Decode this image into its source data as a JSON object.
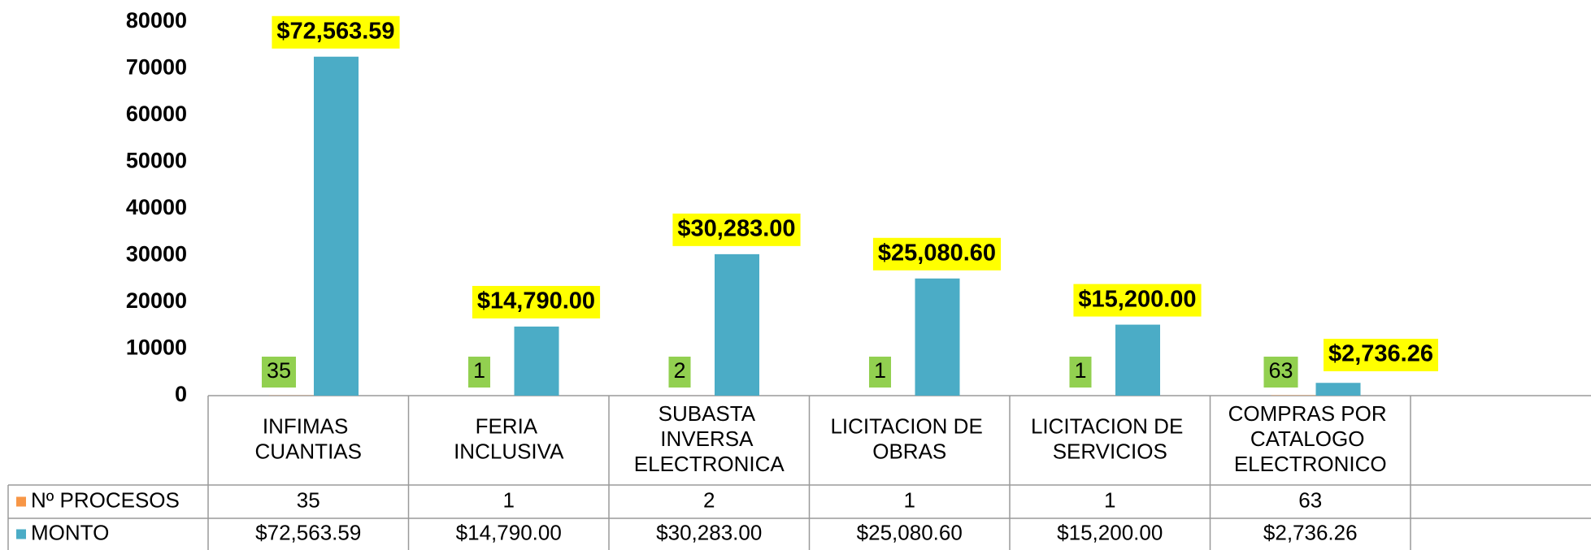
{
  "chart_data": {
    "type": "bar",
    "categories": [
      "INFIMAS CUANTIAS",
      "FERIA INCLUSIVA",
      "SUBASTA INVERSA ELECTRONICA",
      "LICITACION DE OBRAS",
      "LICITACION DE SERVICIOS",
      "COMPRAS POR CATALOGO ELECTRONICO"
    ],
    "series": [
      {
        "name": "Nº PROCESOS",
        "color": "#f79646",
        "values": [
          35,
          1,
          2,
          1,
          1,
          63
        ]
      },
      {
        "name": "MONTO",
        "color": "#4bacc6",
        "values": [
          72563.59,
          14790.0,
          30283.0,
          25080.6,
          15200.0,
          2736.26
        ],
        "value_labels": [
          "$72,563.59",
          "$14,790.00",
          "$30,283.00",
          "$25,080.60",
          "$15,200.00",
          "$2,736.26"
        ]
      }
    ],
    "ylim": [
      0,
      80000
    ],
    "yticks": [
      0,
      10000,
      20000,
      30000,
      40000,
      50000,
      60000,
      70000,
      80000
    ],
    "grid": false,
    "data_table": true
  }
}
